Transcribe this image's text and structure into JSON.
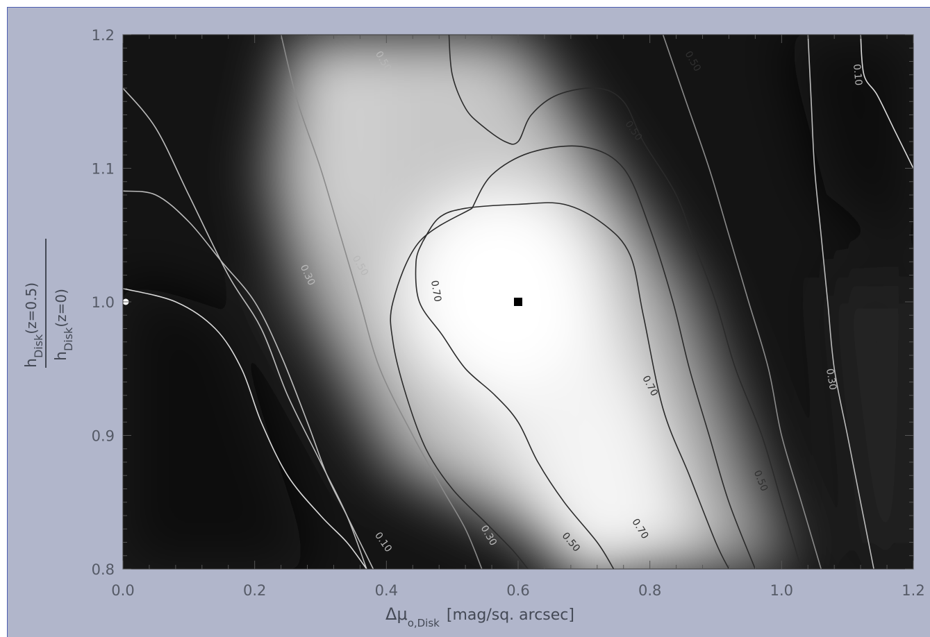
{
  "chart_data": {
    "type": "heatmap",
    "subtype": "contour",
    "colormap": "grayscale",
    "xlabel": "Δμ",
    "xlabel_subscript": "o,Disk",
    "xlabel_unit": "[mag/sq. arcsec]",
    "ylabel_numerator": "h",
    "ylabel_numerator_sub": "Disk",
    "ylabel_numerator_arg": "(z=0.5)",
    "ylabel_denominator": "h",
    "ylabel_denominator_sub": "Disk",
    "ylabel_denominator_arg": "(z=0)",
    "xlim": [
      0.0,
      1.2
    ],
    "ylim": [
      0.8,
      1.2
    ],
    "x_ticks": [
      "0.0",
      "0.2",
      "0.4",
      "0.6",
      "0.8",
      "1.0",
      "1.2"
    ],
    "y_ticks": [
      "0.8",
      "0.9",
      "1.0",
      "1.1",
      "1.2"
    ],
    "contour_levels": [
      0.1,
      0.3,
      0.5,
      0.7
    ],
    "contour_labels": [
      {
        "text": "0.50",
        "x": 0.395,
        "y": 1.18,
        "rot": 60
      },
      {
        "text": "0.50",
        "x": 0.865,
        "y": 1.18,
        "rot": 60
      },
      {
        "text": "0.10",
        "x": 1.115,
        "y": 1.17,
        "rot": 85
      },
      {
        "text": "0.50",
        "x": 0.775,
        "y": 1.128,
        "rot": 55
      },
      {
        "text": "0.50",
        "x": 0.36,
        "y": 1.027,
        "rot": 60
      },
      {
        "text": "0.30",
        "x": 0.28,
        "y": 1.02,
        "rot": 65
      },
      {
        "text": "0.70",
        "x": 0.475,
        "y": 1.008,
        "rot": 80
      },
      {
        "text": "0.70",
        "x": 0.8,
        "y": 0.937,
        "rot": 62
      },
      {
        "text": "0.30",
        "x": 1.075,
        "y": 0.942,
        "rot": 80
      },
      {
        "text": "0.50",
        "x": 0.968,
        "y": 0.866,
        "rot": 68
      },
      {
        "text": "0.70",
        "x": 0.785,
        "y": 0.83,
        "rot": 58
      },
      {
        "text": "0.10",
        "x": 0.395,
        "y": 0.82,
        "rot": 55
      },
      {
        "text": "0.50",
        "x": 0.68,
        "y": 0.82,
        "rot": 50
      },
      {
        "text": "0.30",
        "x": 0.555,
        "y": 0.825,
        "rot": 60
      }
    ],
    "markers": [
      {
        "name": "best-fit",
        "x": 0.6,
        "y": 1.0,
        "shape": "square",
        "color": "#000000"
      },
      {
        "name": "reference",
        "x": 0.0,
        "y": 1.0,
        "shape": "circle",
        "color": "#ffffff"
      }
    ],
    "contours": [
      {
        "level": 0.7,
        "color": "#2a2a2a",
        "points": [
          [
            0.455,
            1.045
          ],
          [
            0.48,
            1.063
          ],
          [
            0.52,
            1.07
          ],
          [
            0.6,
            1.073
          ],
          [
            0.67,
            1.073
          ],
          [
            0.73,
            1.058
          ],
          [
            0.77,
            1.035
          ],
          [
            0.79,
            0.99
          ],
          [
            0.82,
            0.92
          ],
          [
            0.86,
            0.87
          ],
          [
            0.9,
            0.82
          ],
          [
            0.92,
            0.8
          ]
        ]
      },
      {
        "level": 0.7,
        "color": "#2a2a2a",
        "points": [
          [
            0.455,
            1.045
          ],
          [
            0.445,
            1.03
          ],
          [
            0.45,
            1.0
          ],
          [
            0.485,
            0.975
          ],
          [
            0.52,
            0.95
          ],
          [
            0.565,
            0.93
          ],
          [
            0.6,
            0.91
          ],
          [
            0.63,
            0.88
          ],
          [
            0.67,
            0.85
          ],
          [
            0.72,
            0.82
          ],
          [
            0.745,
            0.8
          ]
        ]
      },
      {
        "level": 0.5,
        "color": "#2a2a2a",
        "points": [
          [
            0.495,
            1.2
          ],
          [
            0.5,
            1.17
          ],
          [
            0.52,
            1.145
          ],
          [
            0.545,
            1.132
          ],
          [
            0.58,
            1.12
          ],
          [
            0.6,
            1.12
          ],
          [
            0.62,
            1.14
          ],
          [
            0.66,
            1.155
          ],
          [
            0.72,
            1.16
          ],
          [
            0.76,
            1.15
          ],
          [
            0.79,
            1.12
          ],
          [
            0.84,
            1.08
          ],
          [
            0.87,
            1.04
          ],
          [
            0.9,
            1.0
          ],
          [
            0.93,
            0.95
          ],
          [
            0.97,
            0.9
          ],
          [
            1.0,
            0.85
          ],
          [
            1.03,
            0.8
          ]
        ]
      },
      {
        "level": 0.5,
        "color": "#2a2a2a",
        "points": [
          [
            0.53,
            1.07
          ],
          [
            0.56,
            1.095
          ],
          [
            0.62,
            1.112
          ],
          [
            0.7,
            1.116
          ],
          [
            0.76,
            1.1
          ],
          [
            0.8,
            1.055
          ],
          [
            0.835,
            1.0
          ],
          [
            0.86,
            0.95
          ],
          [
            0.89,
            0.9
          ],
          [
            0.92,
            0.85
          ],
          [
            0.96,
            0.8
          ]
        ]
      },
      {
        "level": 0.5,
        "color": "#2a2a2a",
        "points": [
          [
            0.53,
            1.07
          ],
          [
            0.45,
            1.045
          ],
          [
            0.41,
            1.0
          ],
          [
            0.41,
            0.97
          ],
          [
            0.43,
            0.93
          ],
          [
            0.46,
            0.89
          ],
          [
            0.5,
            0.86
          ],
          [
            0.55,
            0.835
          ],
          [
            0.59,
            0.815
          ],
          [
            0.615,
            0.8
          ]
        ]
      },
      {
        "level": 0.5,
        "color": "#8a8a8a",
        "points": [
          [
            0.24,
            1.2
          ],
          [
            0.265,
            1.15
          ],
          [
            0.3,
            1.1
          ],
          [
            0.33,
            1.05
          ],
          [
            0.36,
            1.0
          ],
          [
            0.39,
            0.95
          ],
          [
            0.44,
            0.9
          ],
          [
            0.485,
            0.86
          ],
          [
            0.52,
            0.83
          ],
          [
            0.545,
            0.8
          ]
        ]
      },
      {
        "level": 0.5,
        "color": "#8a8a8a",
        "points": [
          [
            0.82,
            1.2
          ],
          [
            0.855,
            1.15
          ],
          [
            0.89,
            1.1
          ],
          [
            0.92,
            1.05
          ],
          [
            0.95,
            1.0
          ],
          [
            0.98,
            0.95
          ],
          [
            1.0,
            0.9
          ],
          [
            1.03,
            0.85
          ],
          [
            1.06,
            0.8
          ]
        ]
      },
      {
        "level": 0.3,
        "color": "#bcbcbc",
        "points": [
          [
            0.0,
            1.16
          ],
          [
            0.05,
            1.13
          ],
          [
            0.1,
            1.08
          ],
          [
            0.16,
            1.02
          ],
          [
            0.21,
            0.98
          ],
          [
            0.25,
            0.93
          ],
          [
            0.3,
            0.88
          ],
          [
            0.34,
            0.84
          ],
          [
            0.37,
            0.8
          ]
        ]
      },
      {
        "level": 0.3,
        "color": "#bcbcbc",
        "points": [
          [
            0.0,
            1.083
          ],
          [
            0.05,
            1.08
          ],
          [
            0.1,
            1.06
          ],
          [
            0.15,
            1.03
          ],
          [
            0.2,
            1.0
          ],
          [
            0.24,
            0.96
          ],
          [
            0.28,
            0.91
          ],
          [
            0.31,
            0.87
          ],
          [
            0.34,
            0.84
          ],
          [
            0.38,
            0.8
          ]
        ]
      },
      {
        "level": 0.3,
        "color": "#bcbcbc",
        "points": [
          [
            1.04,
            1.2
          ],
          [
            1.045,
            1.15
          ],
          [
            1.05,
            1.1
          ],
          [
            1.06,
            1.05
          ],
          [
            1.07,
            1.0
          ],
          [
            1.08,
            0.95
          ],
          [
            1.1,
            0.9
          ],
          [
            1.12,
            0.85
          ],
          [
            1.14,
            0.8
          ]
        ]
      },
      {
        "level": 0.1,
        "color": "#dcdcdc",
        "points": [
          [
            0.0,
            1.01
          ],
          [
            0.08,
            1.0
          ],
          [
            0.14,
            0.98
          ],
          [
            0.18,
            0.95
          ],
          [
            0.21,
            0.91
          ],
          [
            0.25,
            0.87
          ],
          [
            0.3,
            0.84
          ],
          [
            0.34,
            0.82
          ],
          [
            0.37,
            0.8
          ]
        ]
      },
      {
        "level": 0.1,
        "color": "#dcdcdc",
        "points": [
          [
            1.12,
            1.2
          ],
          [
            1.125,
            1.17
          ],
          [
            1.145,
            1.155
          ],
          [
            1.17,
            1.13
          ],
          [
            1.2,
            1.1
          ]
        ]
      }
    ]
  }
}
